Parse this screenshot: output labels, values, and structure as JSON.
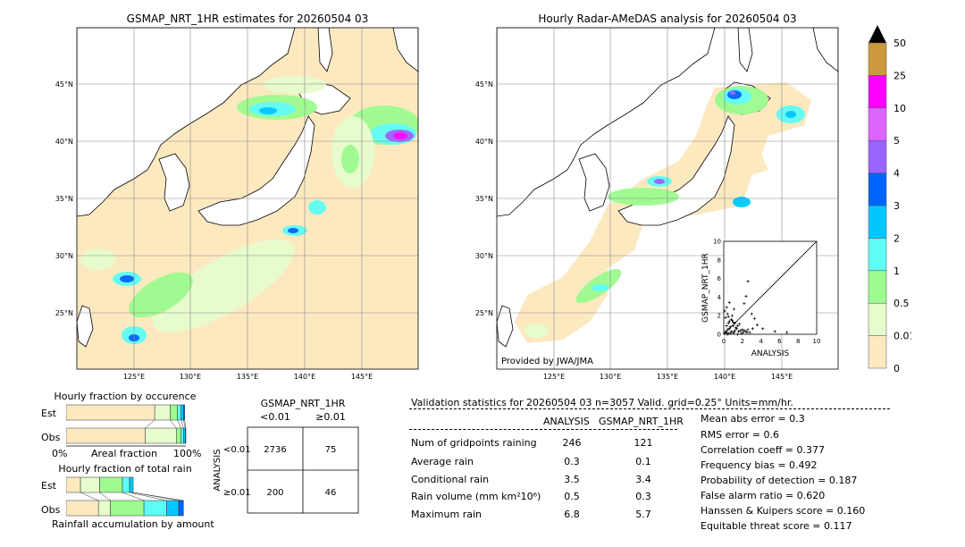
{
  "titles": {
    "left_map": "GSMAP_NRT_1HR estimates for 20260504 03",
    "right_map": "Hourly Radar-AMeDAS analysis for 20260504 03"
  },
  "map": {
    "lat_labels": [
      "45°N",
      "40°N",
      "35°N",
      "30°N",
      "25°N"
    ],
    "lon_labels": [
      "125°E",
      "130°E",
      "135°E",
      "140°E",
      "145°E"
    ],
    "land_color": "#ffffff",
    "sea_no_rain_color": "#fde9c0",
    "credit": "Provided by JWA/JMA"
  },
  "colorbar": {
    "labels": [
      "0",
      "0.01",
      "0.5",
      "1",
      "2",
      "3",
      "4",
      "5",
      "10",
      "25",
      "50"
    ],
    "colors": [
      "#fde9c0",
      "#e6fccd",
      "#9dfb8f",
      "#5dfcf5",
      "#00c8ff",
      "#0064ff",
      "#9a64ff",
      "#dc64ff",
      "#ff00ff",
      "#cc9a3c"
    ],
    "extend_color": "#000000"
  },
  "scatter": {
    "ylabel": "GSMAP_NRT_1HR",
    "xlabel": "ANALYSIS",
    "ticks": [
      "0",
      "2",
      "4",
      "6",
      "8",
      "10"
    ]
  },
  "occurrence": {
    "title": "Hourly fraction by occurence",
    "rows": [
      "Est",
      "Obs"
    ],
    "axis_left": "0%",
    "axis_mid": "Areal fraction",
    "axis_right": "100%"
  },
  "total_rain": {
    "title": "Hourly fraction of total rain",
    "rows": [
      "Est",
      "Obs"
    ],
    "footer": "Rainfall accumulation by amount"
  },
  "contingency": {
    "title": "GSMAP_NRT_1HR",
    "col_labels": [
      "<0.01",
      "≥0.01"
    ],
    "row_axis": "ANALYSIS",
    "row_labels": [
      "<0.01",
      "≥0.01"
    ],
    "cells": [
      [
        "2736",
        "75"
      ],
      [
        "200",
        "46"
      ]
    ]
  },
  "validation": {
    "header": "Validation statistics for 20260504 03  n=3057 Valid. grid=0.25° Units=mm/hr.",
    "col_analysis": "ANALYSIS",
    "col_gsmap": "GSMAP_NRT_1HR",
    "rows": [
      {
        "label": "Num of gridpoints raining",
        "analysis": "246",
        "gsmap": "121"
      },
      {
        "label": "Average rain",
        "analysis": "0.3",
        "gsmap": "0.1"
      },
      {
        "label": "Conditional rain",
        "analysis": "3.5",
        "gsmap": "3.4"
      },
      {
        "label": "Rain volume (mm km²10⁶)",
        "analysis": "0.5",
        "gsmap": "0.3"
      },
      {
        "label": "Maximum rain",
        "analysis": "6.8",
        "gsmap": "5.7"
      }
    ],
    "scores": [
      "Mean abs error =    0.3",
      "RMS error =    0.6",
      "Correlation coeff =  0.377",
      "Frequency bias =  0.492",
      "Probability of detection =  0.187",
      "False alarm ratio =  0.620",
      "Hanssen & Kuipers score =  0.160",
      "Equitable threat score =  0.117"
    ]
  },
  "chart_data": [
    {
      "type": "scatter",
      "xlabel": "ANALYSIS",
      "ylabel": "GSMAP_NRT_1HR",
      "xlim": [
        0,
        10
      ],
      "ylim": [
        0,
        10
      ],
      "x": [
        0.1,
        0.2,
        0.3,
        0.4,
        0.5,
        0.6,
        0.8,
        1.0,
        1.2,
        0.3,
        0.5,
        0.7,
        0.9,
        1.1,
        1.4,
        1.6,
        1.9,
        2.2,
        2.5,
        0.2,
        0.4,
        0.6,
        1.0,
        1.3,
        1.7,
        2.0,
        2.4,
        2.8,
        3.1,
        0.1,
        0.3,
        0.5,
        0.8,
        1.2,
        1.5,
        1.8,
        2.1,
        0.6,
        0.9,
        1.1,
        3.3,
        4.2,
        5.5,
        6.8,
        3.0,
        2.4,
        1.0,
        0.4,
        0.7,
        1.5,
        2.6,
        3.6
      ],
      "y": [
        0.1,
        0.3,
        0.2,
        0.5,
        0.1,
        0.6,
        0.3,
        0.2,
        0.4,
        0.9,
        1.2,
        0.8,
        1.5,
        0.2,
        0.6,
        0.3,
        0.1,
        0.4,
        0.2,
        1.8,
        2.2,
        1.4,
        0.9,
        0.7,
        1.1,
        0.5,
        0.3,
        0.2,
        0.6,
        2.5,
        2.9,
        1.9,
        1.6,
        1.2,
        0.9,
        0.4,
        0.2,
        3.4,
        2.0,
        2.7,
        1.7,
        0.6,
        0.3,
        0.2,
        2.2,
        4.1,
        1.3,
        0.0,
        0.1,
        0.0,
        0.5,
        1.0
      ],
      "extra_points": {
        "x": [
          2.6,
          2.2
        ],
        "y": [
          5.7,
          3.3
        ]
      }
    },
    {
      "type": "bar",
      "title": "Hourly fraction by occurence",
      "categories": [
        "Est",
        "Obs"
      ],
      "series": [
        {
          "values": [
            0.74,
            0.66
          ]
        },
        {
          "values": [
            0.13,
            0.26
          ]
        },
        {
          "values": [
            0.06,
            0.04
          ]
        },
        {
          "values": [
            0.03,
            0.02
          ]
        },
        {
          "values": [
            0.02,
            0.015
          ]
        },
        {
          "values": [
            0.01,
            0.005
          ]
        }
      ]
    },
    {
      "type": "bar",
      "title": "Hourly fraction of total rain",
      "categories": [
        "Est",
        "Obs"
      ],
      "series": [
        {
          "values": [
            0.12,
            0.27
          ]
        },
        {
          "values": [
            0.16,
            0.1
          ]
        },
        {
          "values": [
            0.19,
            0.28
          ]
        },
        {
          "values": [
            0.06,
            0.19
          ]
        },
        {
          "values": [
            0.03,
            0.1
          ]
        },
        {
          "values": [
            0.0,
            0.04
          ]
        }
      ]
    }
  ]
}
